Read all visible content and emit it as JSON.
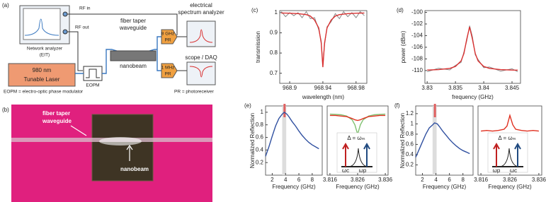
{
  "chart_data": [
    {
      "type": "line",
      "panel": "(c)",
      "xlabel": "wavelength (nm)",
      "ylabel": "transmission",
      "xlim": [
        968.888,
        968.993
      ],
      "ylim": [
        0.65,
        1.01
      ],
      "xticks": [
        968.9,
        968.94,
        968.98
      ],
      "yticks": [
        0.7,
        0.8,
        0.9,
        1
      ],
      "series": [
        {
          "color": "#8a8a8a",
          "x": [
            968.89,
            968.895,
            968.9,
            968.905,
            968.91,
            968.915,
            968.92,
            968.925,
            968.93,
            968.935,
            968.938,
            968.94,
            968.942,
            968.945,
            968.95,
            968.955,
            968.96,
            968.965,
            968.97,
            968.975,
            968.98,
            968.985,
            968.99
          ],
          "values": [
            1.005,
            0.98,
            1.0,
            0.985,
            1.0,
            0.975,
            1.005,
            0.97,
            0.975,
            0.915,
            0.86,
            0.735,
            0.84,
            0.93,
            0.955,
            0.995,
            0.97,
            1.005,
            0.98,
            1.0,
            0.975,
            1.005,
            0.985
          ]
        },
        {
          "color": "#d93030",
          "x": [
            968.89,
            968.9,
            968.91,
            968.92,
            968.925,
            968.93,
            968.935,
            968.938,
            968.94,
            968.942,
            968.945,
            968.95,
            968.955,
            968.96,
            968.97,
            968.98,
            968.99
          ],
          "values": [
            0.998,
            0.997,
            0.995,
            0.99,
            0.983,
            0.963,
            0.924,
            0.85,
            0.73,
            0.85,
            0.924,
            0.963,
            0.983,
            0.99,
            0.995,
            0.997,
            0.998
          ]
        }
      ]
    },
    {
      "type": "line",
      "panel": "(d)",
      "xlabel": "frequency (GHz)",
      "ylabel": "power (dBm)",
      "xlim": [
        3.8296,
        3.8465
      ],
      "ylim": [
        -112.2,
        -99.7
      ],
      "xticks": [
        3.83,
        3.835,
        3.84,
        3.845
      ],
      "yticks": [
        -100,
        -102,
        -104,
        -106,
        -108,
        -110
      ],
      "series": [
        {
          "color": "#8a8a8a",
          "x": [
            3.83,
            3.832,
            3.834,
            3.835,
            3.836,
            3.8365,
            3.837,
            3.8375,
            3.838,
            3.8385,
            3.839,
            3.84,
            3.841,
            3.843,
            3.845,
            3.846
          ],
          "values": [
            -110.2,
            -109.6,
            -109.9,
            -109.1,
            -108.6,
            -106.8,
            -104.9,
            -102.3,
            -104.2,
            -107.3,
            -108.1,
            -109.5,
            -109.4,
            -110.1,
            -109.7,
            -110.2
          ]
        },
        {
          "color": "#d93030",
          "x": [
            3.83,
            3.832,
            3.834,
            3.835,
            3.836,
            3.8365,
            3.837,
            3.8375,
            3.838,
            3.8385,
            3.839,
            3.84,
            3.841,
            3.843,
            3.845,
            3.846
          ],
          "values": [
            -109.92,
            -109.84,
            -109.63,
            -109.3,
            -108.34,
            -107.07,
            -104.6,
            -102.5,
            -104.6,
            -107.07,
            -108.34,
            -109.3,
            -109.63,
            -109.84,
            -109.92,
            -109.93
          ]
        }
      ]
    },
    {
      "type": "line",
      "panel": "(e)",
      "xlabel": "Frequency (GHz)",
      "ylabel": "Normalized Reflection",
      "xlim": [
        1,
        9.5
      ],
      "ylim": [
        0,
        1.1
      ],
      "xticks": [
        2,
        4,
        6,
        8
      ],
      "yticks": [
        0.2,
        0.4,
        0.6,
        0.8,
        1
      ],
      "shade": [
        3.5,
        4.1
      ],
      "marker": 3.85,
      "series": [
        {
          "color": "#3050a0",
          "x": [
            1,
            1.5,
            2,
            2.5,
            3,
            3.5,
            3.8,
            4.2,
            4.5,
            5,
            5.5,
            6,
            6.5,
            7,
            7.5,
            8,
            8.5,
            9
          ],
          "values": [
            0.3,
            0.45,
            0.62,
            0.78,
            0.9,
            0.97,
            1.0,
            0.97,
            0.93,
            0.85,
            0.78,
            0.7,
            0.63,
            0.57,
            0.52,
            0.48,
            0.45,
            0.42
          ]
        }
      ]
    },
    {
      "type": "line",
      "xlabel": "Frequency (GHz)",
      "xlim": [
        3.815,
        3.837
      ],
      "ylim": [
        0,
        1.1
      ],
      "xticks": [
        3.816,
        3.826,
        3.836
      ],
      "annotations": [
        "Δ = ωₘ",
        "ωc",
        "ωp"
      ],
      "series": [
        {
          "color": "#80c070",
          "x": [
            3.816,
            3.818,
            3.82,
            3.822,
            3.824,
            3.825,
            3.826,
            3.827,
            3.828,
            3.83,
            3.832,
            3.834,
            3.836
          ],
          "values": [
            0.97,
            0.965,
            0.96,
            0.94,
            0.88,
            0.8,
            0.65,
            0.8,
            0.88,
            0.94,
            0.96,
            0.965,
            0.97
          ]
        },
        {
          "color": "#e03020",
          "x": [
            3.816,
            3.818,
            3.82,
            3.822,
            3.824,
            3.825,
            3.826,
            3.827,
            3.828,
            3.83,
            3.832,
            3.834,
            3.836
          ],
          "values": [
            0.95,
            0.95,
            0.94,
            0.93,
            0.9,
            0.88,
            0.87,
            0.88,
            0.9,
            0.93,
            0.94,
            0.95,
            0.95
          ]
        }
      ]
    },
    {
      "type": "line",
      "panel": "(f)",
      "xlabel": "Frequency (GHz)",
      "ylabel": "Normalized Reflection",
      "xlim": [
        1,
        9.5
      ],
      "ylim": [
        0,
        1.35
      ],
      "xticks": [
        2,
        4,
        6,
        8
      ],
      "yticks": [
        0.2,
        0.4,
        0.6,
        0.8,
        1,
        1.2
      ],
      "shade": [
        3.5,
        4.1
      ],
      "marker": 3.85,
      "series": [
        {
          "color": "#3050a0",
          "x": [
            1,
            1.5,
            2,
            2.5,
            3,
            3.5,
            3.8,
            4.2,
            4.5,
            5,
            5.5,
            6,
            6.5,
            7,
            7.5,
            8,
            8.5,
            9
          ],
          "values": [
            0.35,
            0.5,
            0.65,
            0.8,
            0.92,
            0.98,
            1.02,
            1.0,
            0.95,
            0.86,
            0.78,
            0.7,
            0.63,
            0.57,
            0.52,
            0.48,
            0.45,
            0.42
          ]
        }
      ]
    },
    {
      "type": "line",
      "xlabel": "Frequency (GHz)",
      "xlim": [
        3.815,
        3.837
      ],
      "ylim": [
        0,
        1.1
      ],
      "xticks": [
        3.816,
        3.826,
        3.836
      ],
      "annotations": [
        "Δ = ωₘ",
        "ωp",
        "ωc"
      ],
      "series": [
        {
          "color": "#e03020",
          "x": [
            3.816,
            3.818,
            3.82,
            3.822,
            3.824,
            3.825,
            3.826,
            3.827,
            3.828,
            3.83,
            3.832,
            3.834,
            3.836
          ],
          "values": [
            0.7,
            0.71,
            0.7,
            0.71,
            0.73,
            0.78,
            0.95,
            0.8,
            0.73,
            0.71,
            0.7,
            0.71,
            0.7
          ]
        }
      ]
    }
  ],
  "diagram": {
    "panel": "(a)",
    "rf_in": "RF in",
    "rf_out": "RF out",
    "analyzer_1": "Network analyzer",
    "analyzer_2": "(EIT)",
    "laser_1": "980 nm",
    "laser_2": "Tunable Laser",
    "eopm": "EOPM",
    "eopm_legend": "EOPM = electro-optic phase modulator",
    "taper_1": "fiber taper",
    "taper_2": "waveguide",
    "nanobeam": "nanobeam",
    "pr8_1": "8 GHz",
    "pr8_2": "PR",
    "pr1_1": "1 MHz",
    "pr1_2": "PR",
    "esa_1": "electrical",
    "esa_2": "spectrum analyzer",
    "scope": "scope / DAQ",
    "pr_legend": "PR = photoreceiver"
  },
  "photo": {
    "panel": "(b)",
    "taper_1": "fiber taper",
    "taper_2": "waveguide",
    "nanobeam": "nanobeam"
  }
}
